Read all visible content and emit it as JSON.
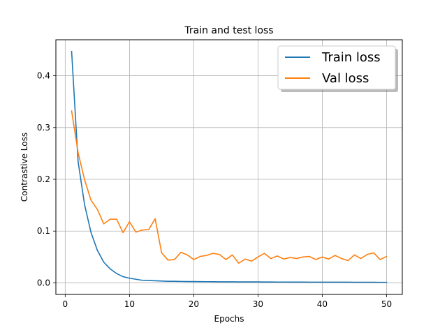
{
  "chart_data": {
    "type": "line",
    "title": "Train and test loss",
    "xlabel": "Epochs",
    "ylabel": "Contrastive Loss",
    "xlim": [
      -1.45,
      52.45
    ],
    "ylim": [
      -0.0223,
      0.4695
    ],
    "xticks": [
      0,
      10,
      20,
      30,
      40,
      50
    ],
    "yticks": [
      0.0,
      0.1,
      0.2,
      0.3,
      0.4
    ],
    "xtick_labels": [
      "0",
      "10",
      "20",
      "30",
      "40",
      "50"
    ],
    "ytick_labels": [
      "0.0",
      "0.1",
      "0.2",
      "0.3",
      "0.4"
    ],
    "grid": true,
    "legend_position": "upper-right",
    "x": [
      1,
      2,
      3,
      4,
      5,
      6,
      7,
      8,
      9,
      10,
      11,
      12,
      13,
      14,
      15,
      16,
      17,
      18,
      19,
      20,
      21,
      22,
      23,
      24,
      25,
      26,
      27,
      28,
      29,
      30,
      31,
      32,
      33,
      34,
      35,
      36,
      37,
      38,
      39,
      40,
      41,
      42,
      43,
      44,
      45,
      46,
      47,
      48,
      49,
      50
    ],
    "series": [
      {
        "name": "Train loss",
        "color": "#1f77b4",
        "values": [
          0.447,
          0.235,
          0.152,
          0.098,
          0.063,
          0.04,
          0.027,
          0.018,
          0.012,
          0.009,
          0.007,
          0.005,
          0.0045,
          0.004,
          0.0035,
          0.003,
          0.003,
          0.0028,
          0.0026,
          0.0025,
          0.0024,
          0.0023,
          0.0022,
          0.0021,
          0.002,
          0.002,
          0.0019,
          0.0019,
          0.0018,
          0.0018,
          0.0017,
          0.0017,
          0.0016,
          0.0016,
          0.0015,
          0.0015,
          0.0015,
          0.0014,
          0.0014,
          0.0014,
          0.0013,
          0.0013,
          0.0013,
          0.0013,
          0.0012,
          0.0012,
          0.0012,
          0.0012,
          0.0011,
          0.0011
        ]
      },
      {
        "name": "Val loss",
        "color": "#ff7f0e",
        "values": [
          0.332,
          0.252,
          0.2,
          0.16,
          0.142,
          0.114,
          0.123,
          0.123,
          0.097,
          0.118,
          0.098,
          0.102,
          0.103,
          0.124,
          0.058,
          0.044,
          0.045,
          0.059,
          0.054,
          0.045,
          0.051,
          0.053,
          0.057,
          0.055,
          0.045,
          0.054,
          0.038,
          0.046,
          0.042,
          0.05,
          0.057,
          0.047,
          0.052,
          0.046,
          0.049,
          0.047,
          0.05,
          0.051,
          0.045,
          0.05,
          0.046,
          0.053,
          0.047,
          0.043,
          0.054,
          0.047,
          0.055,
          0.058,
          0.045,
          0.051
        ]
      }
    ]
  }
}
